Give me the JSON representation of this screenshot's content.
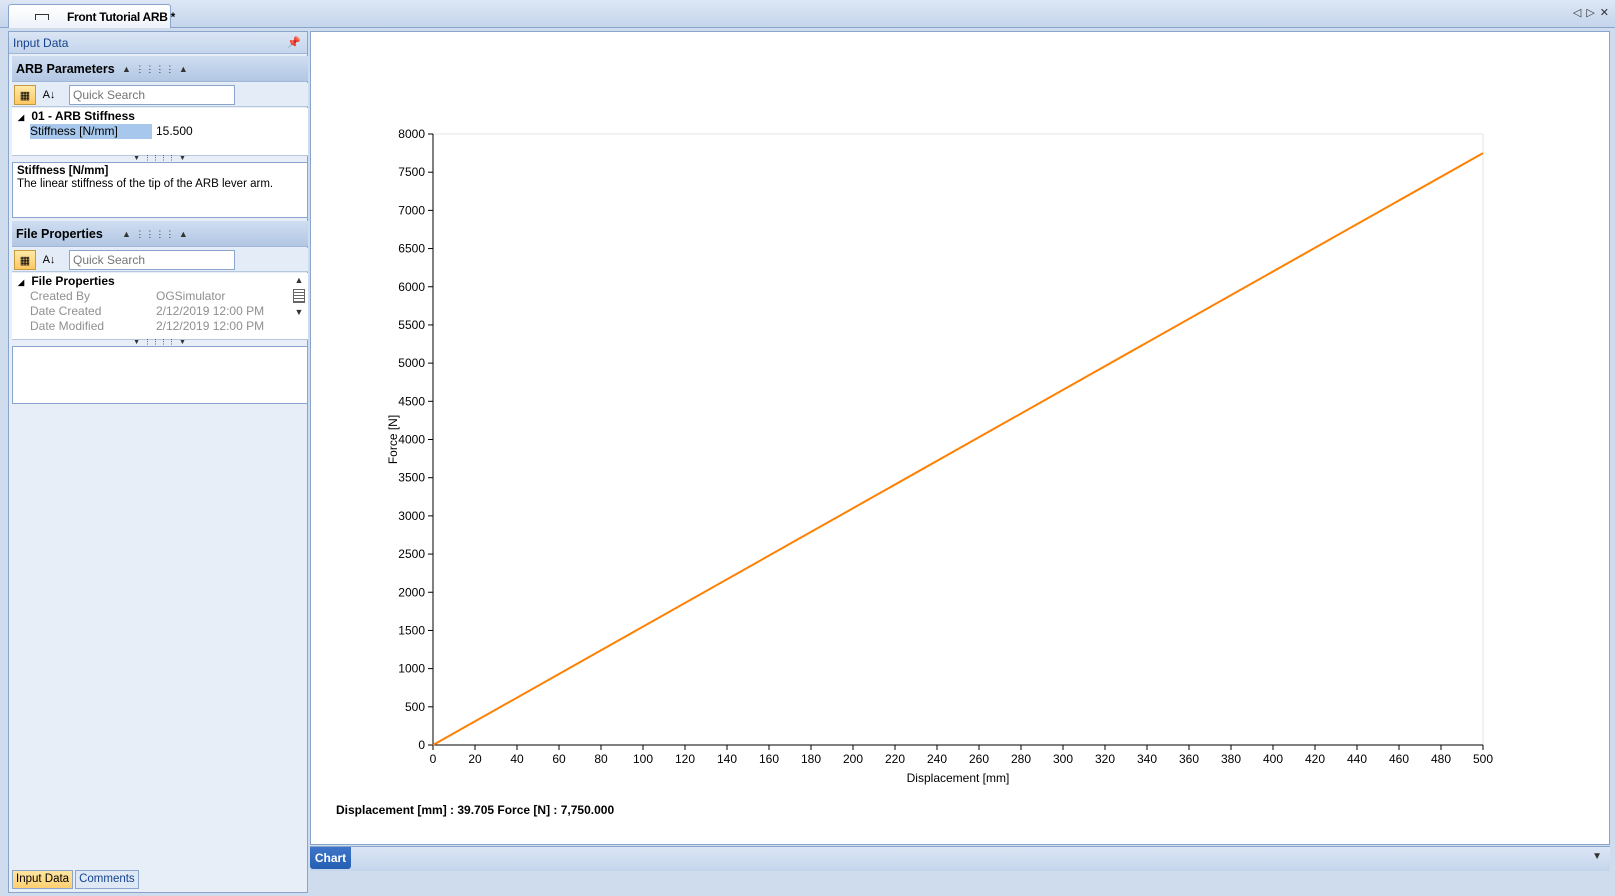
{
  "document_tab": {
    "label": "Front Tutorial ARB *"
  },
  "left_pane": {
    "title": "Input Data",
    "arb_section": {
      "header": "ARB Parameters",
      "search_placeholder": "Quick Search",
      "category": "01 - ARB Stiffness",
      "property": {
        "name": "Stiffness [N/mm]",
        "value": "15.500"
      },
      "description_title": "Stiffness [N/mm]",
      "description_text": "The linear stiffness of the tip of the ARB lever arm."
    },
    "file_section": {
      "header": "File Properties",
      "search_placeholder": "Quick Search",
      "category": "File Properties",
      "rows": [
        {
          "name": "Created By",
          "value": "OGSimulator"
        },
        {
          "name": "Date Created",
          "value": "2/12/2019 12:00 PM"
        },
        {
          "name": "Date Modified",
          "value": "2/12/2019 12:00 PM"
        }
      ]
    },
    "bottom_tabs": [
      "Input Data",
      "Comments"
    ]
  },
  "chart_tab": "Chart",
  "readout": "Displacement [mm] : 39.705 Force [N] : 7,750.000",
  "chart_data": {
    "type": "line",
    "title": "",
    "xlabel": "Displacement [mm]",
    "ylabel": "Force [N]",
    "xlim": [
      0,
      500
    ],
    "ylim": [
      0,
      8000
    ],
    "x_ticks": [
      0,
      20,
      40,
      60,
      80,
      100,
      120,
      140,
      160,
      180,
      200,
      220,
      240,
      260,
      280,
      300,
      320,
      340,
      360,
      380,
      400,
      420,
      440,
      460,
      480,
      500
    ],
    "y_ticks": [
      0,
      500,
      1000,
      1500,
      2000,
      2500,
      3000,
      3500,
      4000,
      4500,
      5000,
      5500,
      6000,
      6500,
      7000,
      7500,
      8000
    ],
    "series": [
      {
        "x": [
          0,
          500
        ],
        "y": [
          0,
          7750
        ],
        "color": "#ff8000"
      }
    ],
    "grid": false,
    "legend": "none"
  }
}
